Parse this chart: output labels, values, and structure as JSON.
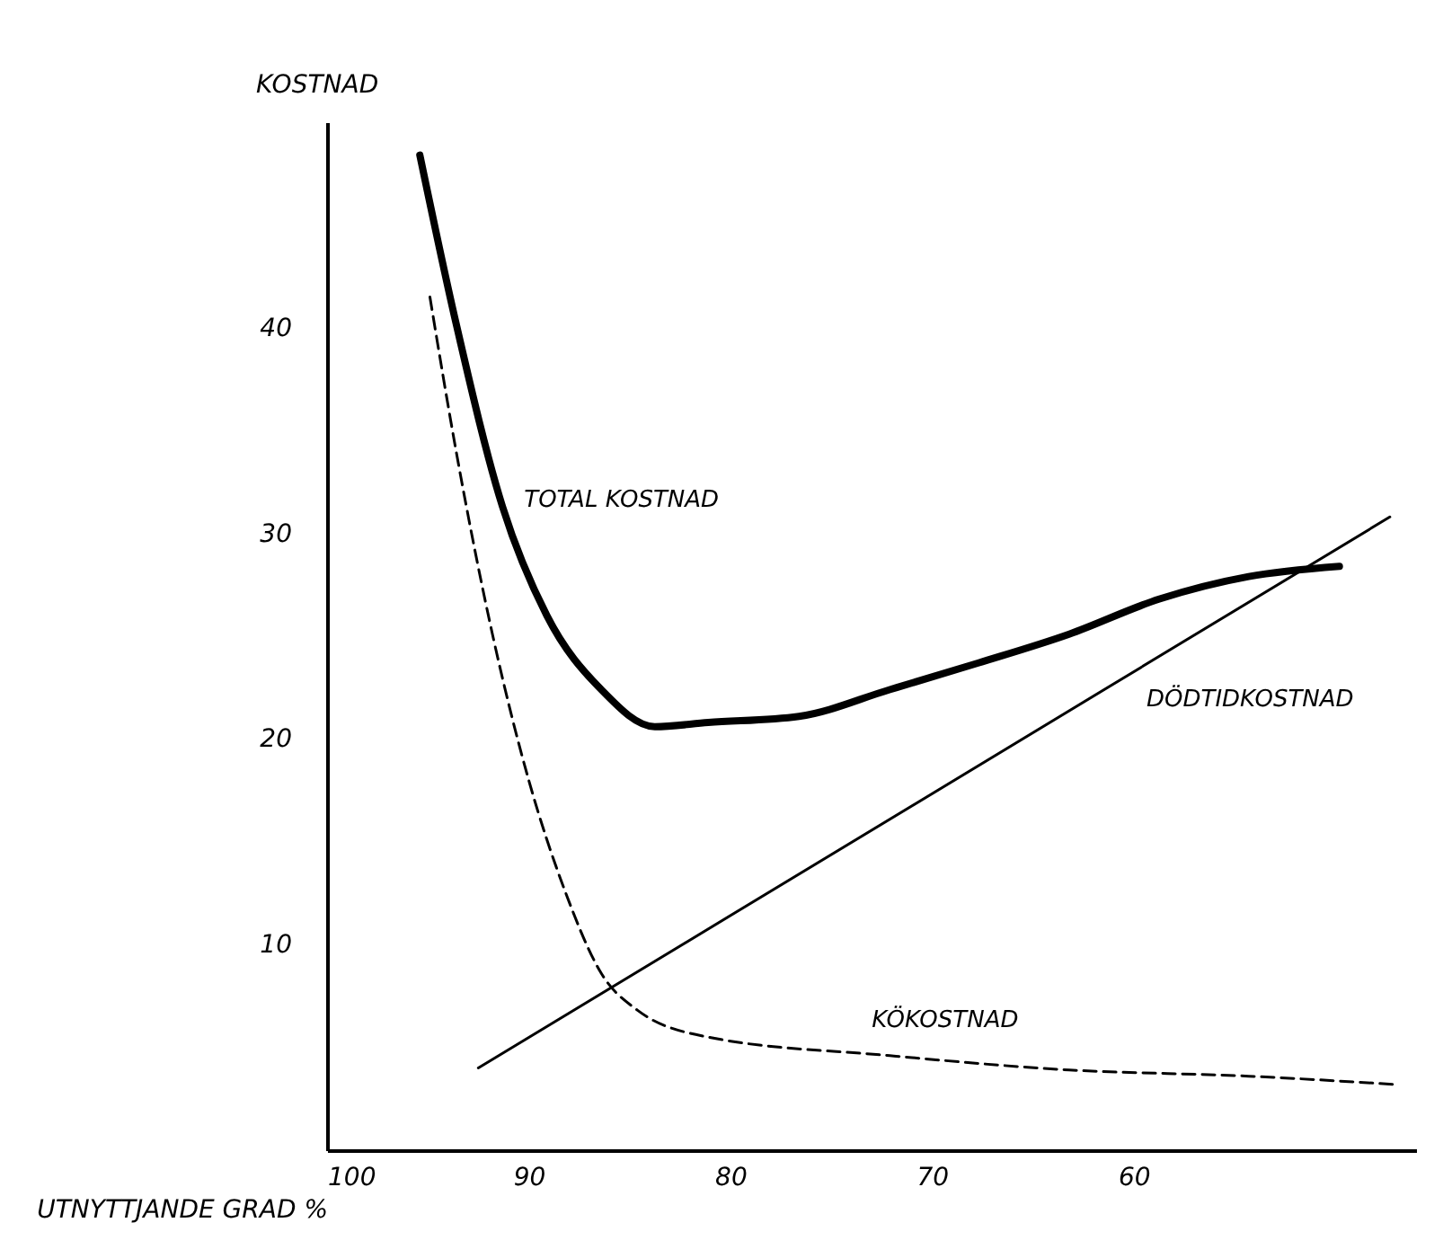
{
  "chart_data": {
    "type": "line",
    "xlabel": "UTNYTTJANDE GRAD %",
    "ylabel": "KOSTNAD",
    "xlim": [
      100,
      46
    ],
    "ylim": [
      0,
      50
    ],
    "xticks": [
      100,
      90,
      80,
      70,
      60
    ],
    "yticks": [
      10,
      20,
      30,
      40
    ],
    "grid": false,
    "marker": "none",
    "series": [
      {
        "name": "TOTAL KOSTNAD",
        "color": "#000000",
        "line_style": "solid",
        "x": [
          95.4,
          93.6,
          91.3,
          89.1,
          86.4,
          83.75,
          81.1,
          76.6,
          72.1,
          67.7,
          63.2,
          58.75,
          54.3,
          49.8
        ],
        "values": [
          48.4,
          40.2,
          31.3,
          26,
          22.4,
          20.6,
          20.8,
          21.1,
          22.4,
          23.7,
          25.1,
          26.8,
          27.9,
          28.4
        ]
      },
      {
        "name": "DÖDTIDKOSTNAD",
        "color": "#000000",
        "line_style": "solid",
        "x": [
          92.5,
          47.3
        ],
        "values": [
          4.0,
          30.8
        ]
      },
      {
        "name": "KÖKOSTNAD",
        "color": "#000000",
        "line_style": "dashed",
        "x": [
          94.9,
          93.6,
          91.8,
          90,
          88.2,
          86.4,
          84.6,
          81.1,
          72.1,
          63.2,
          54.3,
          47.1
        ],
        "values": [
          41.5,
          34,
          25.1,
          18,
          12.6,
          8.6,
          6.8,
          5.5,
          4.6,
          3.9,
          3.6,
          3.2
        ]
      }
    ]
  }
}
